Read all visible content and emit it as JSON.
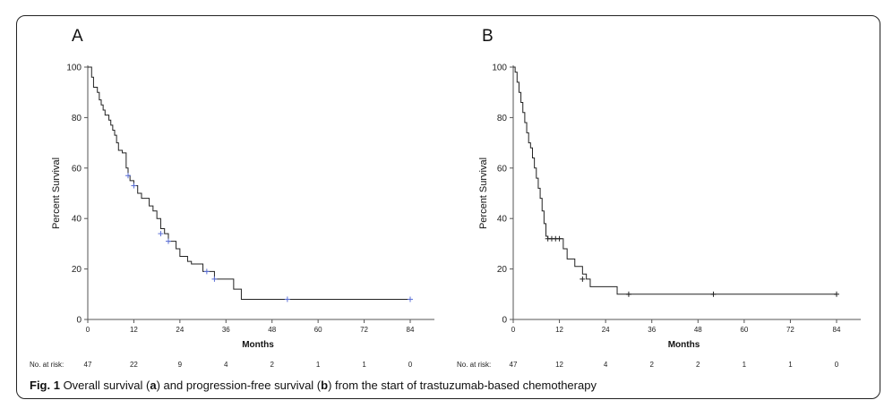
{
  "chart_data": [
    {
      "type": "line",
      "panel_label": "A",
      "xlabel": "Months",
      "ylabel": "Percent Survival",
      "xlim": [
        0,
        84
      ],
      "ylim": [
        0,
        100
      ],
      "xticks": [
        "0",
        "12",
        "24",
        "36",
        "48",
        "60",
        "72",
        "84"
      ],
      "yticks": [
        "0",
        "20",
        "40",
        "60",
        "80",
        "100"
      ],
      "curve": {
        "x": [
          0,
          1,
          1.5,
          2,
          2.5,
          3,
          3.5,
          4,
          4.5,
          5,
          5.5,
          6,
          6.5,
          7,
          7.5,
          8,
          9,
          10,
          10.5,
          11,
          12,
          13,
          14,
          15,
          16,
          17,
          18,
          19,
          20,
          21,
          22,
          23,
          24,
          25,
          26,
          27,
          28,
          29,
          30,
          31,
          32,
          33,
          34,
          35,
          36,
          37,
          38,
          39,
          40,
          52,
          84
        ],
        "y": [
          100,
          96,
          92,
          92,
          90,
          87,
          85,
          83,
          81,
          81,
          79,
          77,
          75,
          73,
          70,
          67,
          66,
          60,
          57,
          55,
          53,
          50,
          48,
          48,
          45,
          43,
          40,
          36,
          34,
          31,
          31,
          28,
          25,
          25,
          23,
          22,
          22,
          22,
          19,
          19,
          19,
          16,
          16,
          16,
          16,
          16,
          12,
          12,
          8,
          8,
          8
        ]
      },
      "censored": {
        "x": [
          10.5,
          12,
          19,
          21,
          31,
          33,
          52,
          84
        ],
        "y": [
          57,
          53,
          34,
          31,
          19,
          16,
          8,
          8
        ]
      },
      "risk_label": "No. at risk:",
      "risk_values": [
        "47",
        "22",
        "9",
        "4",
        "2",
        "1",
        "1",
        "0"
      ]
    },
    {
      "type": "line",
      "panel_label": "B",
      "xlabel": "Months",
      "ylabel": "Percent Survival",
      "xlim": [
        0,
        84
      ],
      "ylim": [
        0,
        100
      ],
      "xticks": [
        "0",
        "12",
        "24",
        "36",
        "48",
        "60",
        "72",
        "84"
      ],
      "yticks": [
        "0",
        "20",
        "40",
        "60",
        "80",
        "100"
      ],
      "curve": {
        "x": [
          0,
          0.5,
          1,
          1.5,
          2,
          2.5,
          3,
          3.5,
          4,
          4.5,
          5,
          5.5,
          6,
          6.5,
          7,
          7.5,
          8,
          8.5,
          9,
          10,
          11,
          12,
          13,
          14,
          15,
          16,
          17,
          18,
          19,
          20,
          27,
          30,
          52,
          84
        ],
        "y": [
          100,
          98,
          94,
          90,
          86,
          82,
          78,
          74,
          70,
          68,
          64,
          60,
          56,
          52,
          48,
          43,
          38,
          33,
          32,
          32,
          32,
          32,
          28,
          24,
          24,
          21,
          21,
          18,
          16,
          13,
          10,
          10,
          10,
          10
        ]
      },
      "censored": {
        "x": [
          9,
          10,
          11,
          12,
          18,
          30,
          52,
          84
        ],
        "y": [
          32,
          32,
          32,
          32,
          16,
          10,
          10,
          10
        ]
      },
      "risk_label": "No. at risk:",
      "risk_values": [
        "47",
        "12",
        "4",
        "2",
        "2",
        "1",
        "1",
        "0"
      ]
    }
  ],
  "caption": {
    "prefix": "Fig. 1",
    "part1": " Overall survival (",
    "a": "a",
    "part2": ") and progression-free survival (",
    "b": "b",
    "part3": ") from the start of trastuzumab-based chemotherapy"
  },
  "colors": {
    "curve_a": "#222222",
    "censor_a": "#5b6fd6",
    "curve_b": "#222222",
    "censor_b": "#222222",
    "axis": "#555555"
  }
}
